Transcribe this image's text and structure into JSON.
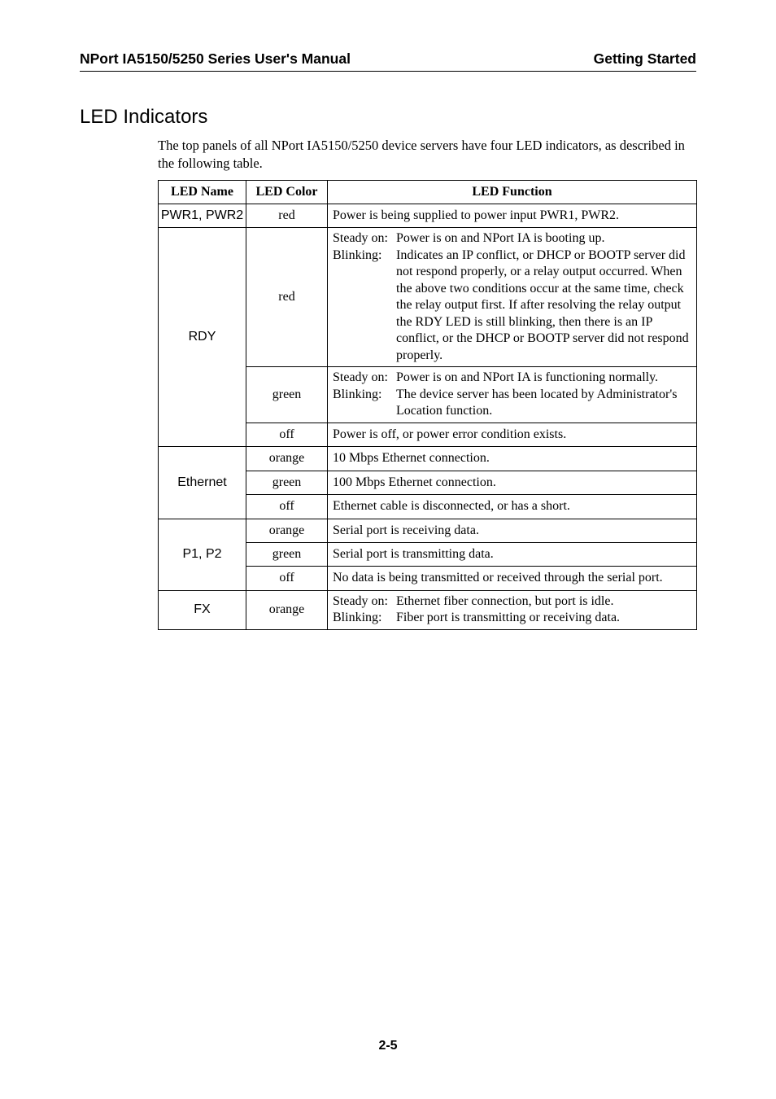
{
  "header": {
    "left": "NPort IA5150/5250 Series User's Manual",
    "right": "Getting Started"
  },
  "section": {
    "title": "LED Indicators",
    "intro": "The top panels of all NPort IA5150/5250 device servers have four LED indicators, as described in the following table."
  },
  "table": {
    "headers": {
      "name": "LED Name",
      "color": "LED Color",
      "func": "LED Function"
    },
    "pwr": {
      "name": "PWR1, PWR2",
      "color": "red",
      "func": "Power is being supplied to power input PWR1, PWR2."
    },
    "rdy": {
      "name": "RDY",
      "red": {
        "color": "red",
        "steady_label": "Steady on:",
        "steady_body": "Power is on and NPort IA is booting up.",
        "blink_label": "Blinking:",
        "blink_body": "Indicates an IP conflict, or DHCP or BOOTP server did not respond properly, or a relay output occurred. When the above two conditions occur at the same time, check the relay output first. If after resolving the relay output the RDY LED is still blinking, then there is an IP conflict, or the DHCP or BOOTP server did not respond properly."
      },
      "green": {
        "color": "green",
        "steady_label": "Steady on:",
        "steady_body": "Power is on and NPort IA is functioning normally.",
        "blink_label": "Blinking:",
        "blink_body": "The device server has been located by Administrator's Location function."
      },
      "off": {
        "color": "off",
        "func": "Power is off, or power error condition exists."
      }
    },
    "eth": {
      "name": "Ethernet",
      "orange": {
        "color": "orange",
        "func": "10 Mbps Ethernet connection."
      },
      "green": {
        "color": "green",
        "func": "100 Mbps Ethernet connection."
      },
      "off": {
        "color": "off",
        "func": "Ethernet cable is disconnected, or has a short."
      }
    },
    "p1p2": {
      "name": "P1, P2",
      "orange": {
        "color": "orange",
        "func": "Serial port is receiving data."
      },
      "green": {
        "color": "green",
        "func": "Serial port is transmitting data."
      },
      "off": {
        "color": "off",
        "func": "No data is being transmitted or received through the serial port."
      }
    },
    "fx": {
      "name": "FX",
      "color": "orange",
      "steady_label": "Steady on:",
      "steady_body": "Ethernet fiber connection, but port is idle.",
      "blink_label": "Blinking:",
      "blink_body": "Fiber port is transmitting or receiving data."
    }
  },
  "footer": {
    "page": "2-5"
  }
}
